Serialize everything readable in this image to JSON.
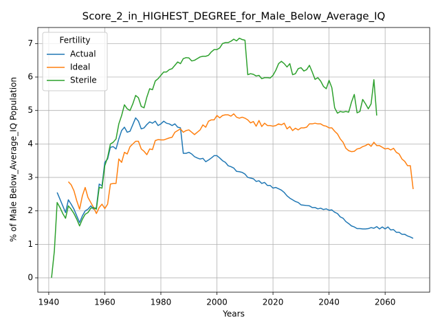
{
  "chart_data": {
    "type": "line",
    "title": "Score_2_in_HIGHEST_DEGREE_for_Male_Below_Average_IQ",
    "xlabel": "Years",
    "ylabel": "% of Male Below_Average_IQ Population",
    "legend_title": "Fertility",
    "legend": "upper left",
    "grid": true,
    "xlim": [
      1936.1,
      2075.9
    ],
    "ylim": [
      -0.43,
      7.48
    ],
    "xticks": [
      1940,
      1960,
      1980,
      2000,
      2020,
      2040,
      2060
    ],
    "yticks": [
      0,
      1,
      2,
      3,
      4,
      5,
      6,
      7
    ],
    "x": [
      1941,
      1942,
      1943,
      1944,
      1945,
      1946,
      1947,
      1948,
      1949,
      1950,
      1951,
      1952,
      1953,
      1954,
      1955,
      1956,
      1957,
      1958,
      1959,
      1960,
      1961,
      1962,
      1963,
      1964,
      1965,
      1966,
      1967,
      1968,
      1969,
      1970,
      1971,
      1972,
      1973,
      1974,
      1975,
      1976,
      1977,
      1978,
      1979,
      1980,
      1981,
      1982,
      1983,
      1984,
      1985,
      1986,
      1987,
      1988,
      1989,
      1990,
      1991,
      1992,
      1993,
      1994,
      1995,
      1996,
      1997,
      1998,
      1999,
      2000,
      2001,
      2002,
      2003,
      2004,
      2005,
      2006,
      2007,
      2008,
      2009,
      2010,
      2011,
      2012,
      2013,
      2014,
      2015,
      2016,
      2017,
      2018,
      2019,
      2020,
      2021,
      2022,
      2023,
      2024,
      2025,
      2026,
      2027,
      2028,
      2029,
      2030,
      2031,
      2032,
      2033,
      2034,
      2035,
      2036,
      2037,
      2038,
      2039,
      2040,
      2041,
      2042,
      2043,
      2044,
      2045,
      2046,
      2047,
      2048,
      2049,
      2050,
      2051,
      2052,
      2053,
      2054,
      2055,
      2056,
      2057,
      2058,
      2059,
      2060,
      2061,
      2062,
      2063,
      2064,
      2065,
      2066,
      2067,
      2068,
      2069,
      2070
    ],
    "series": [
      {
        "name": "Actual",
        "color": "#1f77b4",
        "values": [
          null,
          null,
          2.55,
          2.35,
          2.15,
          1.95,
          2.33,
          2.2,
          2.05,
          1.85,
          1.65,
          1.85,
          2.0,
          2.05,
          2.15,
          2.05,
          2.1,
          2.8,
          2.75,
          3.45,
          3.55,
          3.9,
          3.92,
          3.85,
          4.15,
          4.4,
          4.5,
          4.35,
          4.38,
          4.58,
          4.78,
          4.68,
          4.45,
          4.48,
          4.58,
          4.66,
          4.62,
          4.68,
          4.55,
          4.6,
          4.68,
          4.62,
          4.6,
          4.55,
          4.6,
          4.5,
          4.48,
          3.72,
          3.72,
          3.75,
          3.7,
          3.62,
          3.58,
          3.55,
          3.57,
          3.47,
          3.52,
          3.58,
          3.65,
          3.65,
          3.58,
          3.5,
          3.45,
          3.35,
          3.32,
          3.28,
          3.18,
          3.17,
          3.15,
          3.1,
          3.0,
          2.98,
          2.96,
          2.88,
          2.9,
          2.82,
          2.85,
          2.76,
          2.76,
          2.68,
          2.7,
          2.66,
          2.62,
          2.55,
          2.45,
          2.38,
          2.33,
          2.28,
          2.25,
          2.18,
          2.17,
          2.16,
          2.15,
          2.1,
          2.1,
          2.06,
          2.08,
          2.04,
          2.06,
          2.02,
          2.03,
          1.96,
          1.92,
          1.82,
          1.78,
          1.68,
          1.62,
          1.55,
          1.52,
          1.47,
          1.47,
          1.46,
          1.46,
          1.47,
          1.5,
          1.48,
          1.53,
          1.46,
          1.52,
          1.46,
          1.52,
          1.43,
          1.44,
          1.36,
          1.36,
          1.3,
          1.3,
          1.25,
          1.22,
          1.18
        ]
      },
      {
        "name": "Ideal",
        "color": "#ff7f0e",
        "values": [
          null,
          null,
          null,
          null,
          null,
          null,
          2.87,
          2.78,
          2.6,
          2.3,
          2.05,
          2.45,
          2.7,
          2.4,
          2.25,
          2.1,
          1.92,
          2.1,
          2.2,
          2.07,
          2.2,
          2.8,
          2.82,
          2.82,
          3.55,
          3.45,
          3.75,
          3.7,
          3.92,
          4.0,
          4.08,
          4.08,
          3.85,
          3.78,
          3.68,
          3.85,
          3.83,
          4.1,
          4.13,
          4.12,
          4.12,
          4.15,
          4.18,
          4.2,
          4.35,
          4.4,
          4.45,
          4.35,
          4.4,
          4.42,
          4.35,
          4.28,
          4.35,
          4.42,
          4.57,
          4.5,
          4.68,
          4.72,
          4.72,
          4.85,
          4.78,
          4.85,
          4.87,
          4.87,
          4.83,
          4.9,
          4.8,
          4.77,
          4.8,
          4.77,
          4.72,
          4.63,
          4.67,
          4.53,
          4.7,
          4.52,
          4.62,
          4.55,
          4.55,
          4.53,
          4.55,
          4.6,
          4.57,
          4.62,
          4.45,
          4.52,
          4.4,
          4.47,
          4.42,
          4.48,
          4.48,
          4.5,
          4.6,
          4.6,
          4.62,
          4.6,
          4.6,
          4.55,
          4.53,
          4.48,
          4.48,
          4.38,
          4.3,
          4.15,
          4.05,
          3.87,
          3.8,
          3.77,
          3.78,
          3.85,
          3.87,
          3.92,
          3.95,
          4.0,
          3.93,
          4.05,
          3.95,
          3.95,
          3.9,
          3.85,
          3.87,
          3.82,
          3.87,
          3.75,
          3.7,
          3.55,
          3.48,
          3.35,
          3.35,
          2.65
        ]
      },
      {
        "name": "Sterile",
        "color": "#2ca02c",
        "values": [
          0,
          0.8,
          2.25,
          2.1,
          1.92,
          1.78,
          2.15,
          2.05,
          1.92,
          1.75,
          1.55,
          1.75,
          1.9,
          1.95,
          2.08,
          2.1,
          2.05,
          2.7,
          2.68,
          3.35,
          3.6,
          4.0,
          4.05,
          4.15,
          4.6,
          4.85,
          5.17,
          5.05,
          5.0,
          5.2,
          5.45,
          5.38,
          5.12,
          5.08,
          5.4,
          5.65,
          5.62,
          5.88,
          5.95,
          6.05,
          6.15,
          6.15,
          6.22,
          6.25,
          6.35,
          6.45,
          6.4,
          6.55,
          6.58,
          6.57,
          6.48,
          6.5,
          6.55,
          6.6,
          6.62,
          6.62,
          6.65,
          6.75,
          6.82,
          6.82,
          6.87,
          7.0,
          7.03,
          7.03,
          7.07,
          7.13,
          7.08,
          7.16,
          7.12,
          7.1,
          6.07,
          6.1,
          6.08,
          6.03,
          6.05,
          5.95,
          5.98,
          5.98,
          5.97,
          6.05,
          6.2,
          6.4,
          6.47,
          6.4,
          6.3,
          6.4,
          6.07,
          6.1,
          6.25,
          6.28,
          6.18,
          6.22,
          6.35,
          6.15,
          5.93,
          5.98,
          5.88,
          5.72,
          5.65,
          5.9,
          5.68,
          5.08,
          4.92,
          4.97,
          4.95,
          4.97,
          4.95,
          5.25,
          5.48,
          4.93,
          4.97,
          5.33,
          5.2,
          5.05,
          5.2,
          5.92,
          4.85,
          null,
          null,
          null,
          null,
          null,
          null,
          null,
          null,
          null,
          null,
          null,
          null,
          null
        ]
      }
    ]
  }
}
